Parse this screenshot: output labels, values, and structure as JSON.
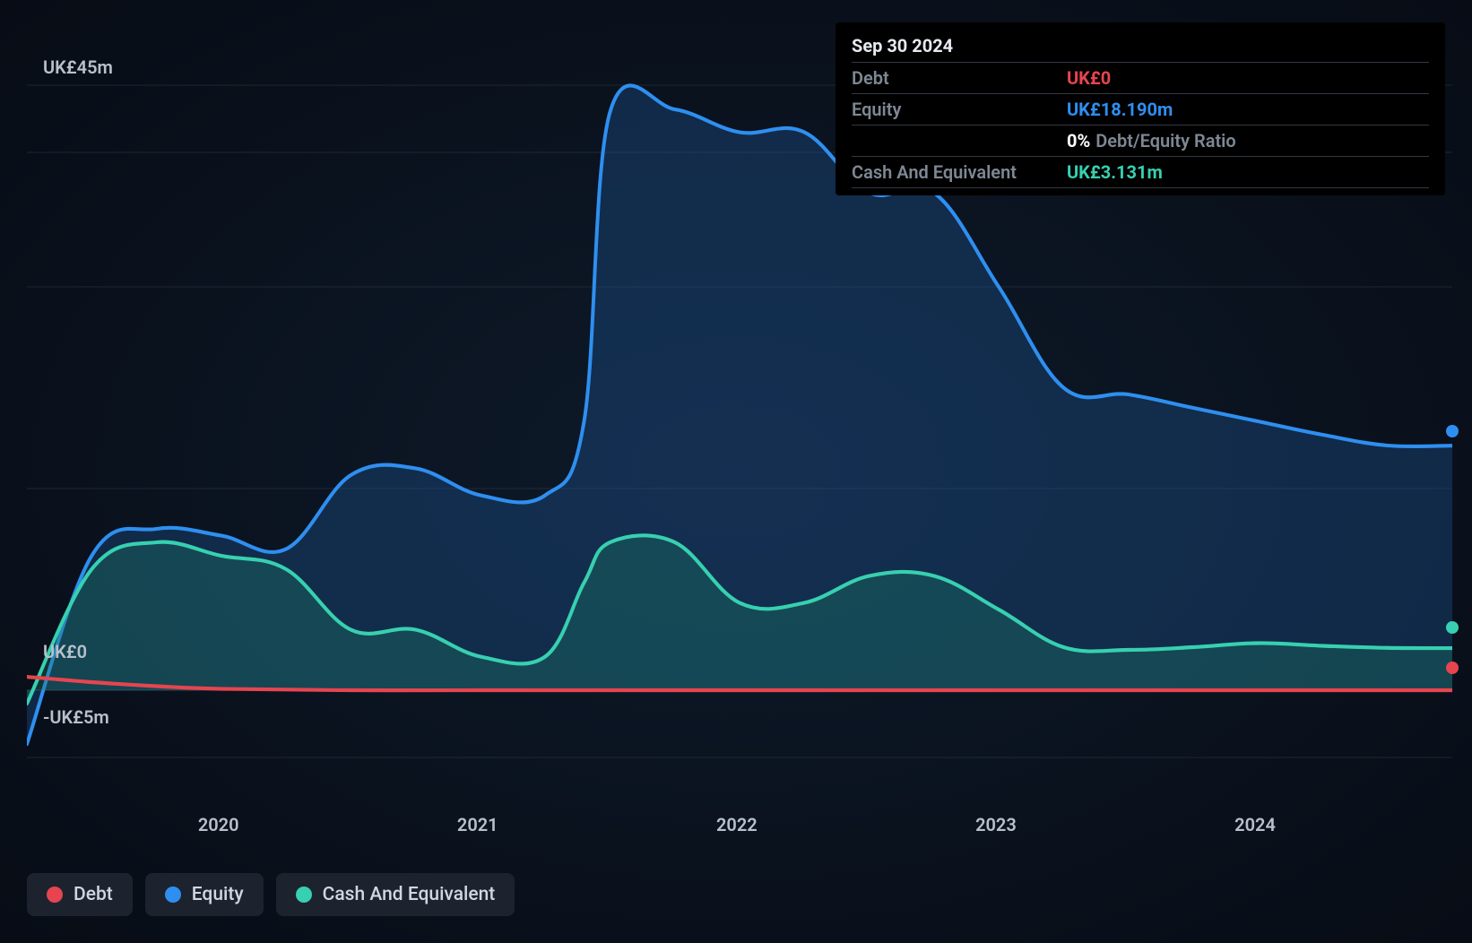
{
  "chart": {
    "type": "area",
    "background_color": "#0a1320",
    "grid_color": "#3a424f",
    "grid_stroke_width": 1,
    "line_stroke_width": 4,
    "area_opacity": 0.35,
    "x": {
      "domain_min_year": 2019.25,
      "domain_max_year": 2024.75,
      "ticks": [
        2020,
        2021,
        2022,
        2023,
        2024
      ],
      "tick_labels": [
        "2020",
        "2021",
        "2022",
        "2023",
        "2024"
      ],
      "label_fontsize": 20,
      "label_color": "#b8c0cc"
    },
    "y": {
      "domain_min": -10,
      "domain_max": 50,
      "gridlines_at": [
        -5,
        0,
        15,
        30,
        40,
        45
      ],
      "axis_labels": [
        {
          "value": 45,
          "text": "UK£45m"
        },
        {
          "value": 0,
          "text": "UK£0"
        },
        {
          "value": -5,
          "text": "-UK£5m"
        }
      ],
      "label_fontsize": 20,
      "label_color": "#b8c0cc"
    },
    "series": [
      {
        "key": "equity",
        "label": "Equity",
        "color": "#2e8ff0",
        "fill": "#1f5a9a",
        "points": [
          [
            2019.25,
            -4
          ],
          [
            2019.5,
            10
          ],
          [
            2019.75,
            12
          ],
          [
            2020.0,
            11.5
          ],
          [
            2020.25,
            10.5
          ],
          [
            2020.5,
            16
          ],
          [
            2020.75,
            16.5
          ],
          [
            2021.0,
            14.5
          ],
          [
            2021.25,
            14.5
          ],
          [
            2021.4,
            20
          ],
          [
            2021.5,
            43
          ],
          [
            2021.75,
            43.2
          ],
          [
            2022.0,
            41.5
          ],
          [
            2022.25,
            41.5
          ],
          [
            2022.5,
            37
          ],
          [
            2022.75,
            37
          ],
          [
            2023.0,
            30
          ],
          [
            2023.25,
            22.5
          ],
          [
            2023.5,
            22
          ],
          [
            2023.75,
            21
          ],
          [
            2024.0,
            20
          ],
          [
            2024.25,
            19
          ],
          [
            2024.5,
            18.2
          ],
          [
            2024.75,
            18.19
          ]
        ]
      },
      {
        "key": "cash",
        "label": "Cash And Equivalent",
        "color": "#37d0b0",
        "fill": "#1d7c68",
        "points": [
          [
            2019.25,
            -1
          ],
          [
            2019.5,
            9
          ],
          [
            2019.75,
            11
          ],
          [
            2020.0,
            10
          ],
          [
            2020.25,
            9
          ],
          [
            2020.5,
            4.5
          ],
          [
            2020.75,
            4.5
          ],
          [
            2021.0,
            2.5
          ],
          [
            2021.25,
            2.5
          ],
          [
            2021.4,
            8
          ],
          [
            2021.5,
            11
          ],
          [
            2021.75,
            11
          ],
          [
            2022.0,
            6.5
          ],
          [
            2022.25,
            6.5
          ],
          [
            2022.5,
            8.5
          ],
          [
            2022.75,
            8.5
          ],
          [
            2023.0,
            6
          ],
          [
            2023.25,
            3.2
          ],
          [
            2023.5,
            3.0
          ],
          [
            2023.75,
            3.2
          ],
          [
            2024.0,
            3.5
          ],
          [
            2024.25,
            3.3
          ],
          [
            2024.5,
            3.15
          ],
          [
            2024.75,
            3.131
          ]
        ]
      },
      {
        "key": "debt",
        "label": "Debt",
        "color": "#e6454f",
        "fill": "#e6454f",
        "thin": true,
        "points": [
          [
            2019.25,
            1.0
          ],
          [
            2019.5,
            0.6
          ],
          [
            2019.75,
            0.3
          ],
          [
            2020.0,
            0.1
          ],
          [
            2020.5,
            0
          ],
          [
            2021.0,
            0
          ],
          [
            2022.0,
            0
          ],
          [
            2023.0,
            0
          ],
          [
            2024.0,
            0
          ],
          [
            2024.75,
            0
          ]
        ]
      }
    ],
    "end_markers": [
      {
        "series": "equity",
        "color": "#2e8ff0",
        "value": 18.19
      },
      {
        "series": "cash",
        "color": "#37d0b0",
        "value": 3.131
      },
      {
        "series": "debt",
        "color": "#e6454f",
        "value": 0
      }
    ]
  },
  "tooltip": {
    "date": "Sep 30 2024",
    "rows": [
      {
        "label": "Debt",
        "value": "UK£0",
        "color": "#e6454f"
      },
      {
        "label": "Equity",
        "value": "UK£18.190m",
        "color": "#2e8ff0"
      },
      {
        "label": "",
        "pct": "0%",
        "text": "Debt/Equity Ratio"
      },
      {
        "label": "Cash And Equivalent",
        "value": "UK£3.131m",
        "color": "#37d0b0"
      }
    ]
  },
  "legend": {
    "items": [
      {
        "label": "Debt",
        "color": "#e6454f"
      },
      {
        "label": "Equity",
        "color": "#2e8ff0"
      },
      {
        "label": "Cash And Equivalent",
        "color": "#37d0b0"
      }
    ]
  }
}
